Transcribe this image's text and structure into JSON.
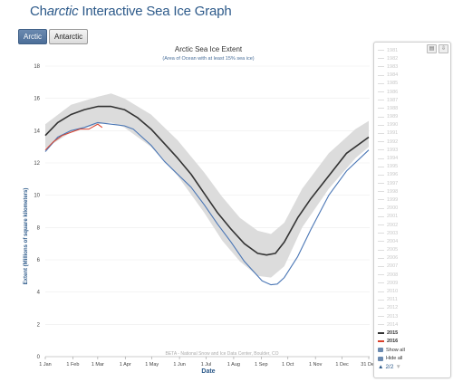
{
  "header": {
    "title_prefix": "Ch",
    "title_em": "arctic",
    "title_suffix": " Interactive Sea Ice Graph"
  },
  "tabs": [
    {
      "label": "Arctic",
      "active": true
    },
    {
      "label": "Antarctic",
      "active": false
    }
  ],
  "chart_data": {
    "type": "line",
    "title": "Arctic Sea Ice Extent",
    "subtitle": "(Area of Ocean with at least 15% sea ice)",
    "xlabel": "Date",
    "ylabel": "Extent (Millions of square kilometers)",
    "ylim": [
      0,
      18
    ],
    "yticks": [
      0,
      2,
      4,
      6,
      8,
      10,
      12,
      14,
      16,
      18
    ],
    "xlim": [
      1,
      366
    ],
    "xticks": [
      {
        "day": 1,
        "label": "1 Jan"
      },
      {
        "day": 32,
        "label": "1 Feb"
      },
      {
        "day": 60,
        "label": "1 Mar"
      },
      {
        "day": 91,
        "label": "1 Apr"
      },
      {
        "day": 121,
        "label": "1 May"
      },
      {
        "day": 152,
        "label": "1 Jun"
      },
      {
        "day": 182,
        "label": "1 Jul"
      },
      {
        "day": 213,
        "label": "1 Aug"
      },
      {
        "day": 244,
        "label": "1 Sep"
      },
      {
        "day": 274,
        "label": "1 Oct"
      },
      {
        "day": 305,
        "label": "1 Nov"
      },
      {
        "day": 335,
        "label": "1 Dec"
      },
      {
        "day": 365,
        "label": "31 Dec"
      }
    ],
    "credit": "BETA - National Snow and Ice Data Center, Boulder, CO",
    "band": {
      "x": [
        1,
        30,
        60,
        75,
        90,
        120,
        150,
        180,
        200,
        220,
        240,
        255,
        270,
        290,
        320,
        350,
        365
      ],
      "lower": [
        12.9,
        13.9,
        14.4,
        14.5,
        14.2,
        13.0,
        11.2,
        8.9,
        7.2,
        5.9,
        5.0,
        4.9,
        5.6,
        8.0,
        10.4,
        12.3,
        13.0
      ],
      "upper": [
        14.4,
        15.6,
        16.1,
        16.3,
        16.0,
        15.0,
        13.4,
        11.4,
        9.9,
        8.6,
        7.8,
        7.6,
        8.3,
        10.4,
        12.6,
        14.1,
        14.6
      ]
    },
    "series": [
      {
        "name": "",
        "color": "#333333",
        "x": [
          1,
          15,
          30,
          45,
          60,
          75,
          90,
          105,
          120,
          135,
          150,
          165,
          180,
          195,
          210,
          225,
          240,
          250,
          260,
          270,
          285,
          300,
          320,
          340,
          365
        ],
        "y": [
          13.7,
          14.5,
          15.0,
          15.3,
          15.5,
          15.5,
          15.3,
          14.8,
          14.1,
          13.2,
          12.3,
          11.3,
          10.1,
          8.9,
          7.9,
          7.0,
          6.4,
          6.3,
          6.4,
          7.1,
          8.6,
          9.8,
          11.2,
          12.6,
          13.6
        ]
      },
      {
        "name": "",
        "color": "#4a76b5",
        "x": [
          1,
          15,
          30,
          45,
          60,
          75,
          90,
          100,
          110,
          120,
          135,
          150,
          165,
          180,
          195,
          210,
          225,
          235,
          245,
          255,
          262,
          270,
          285,
          300,
          320,
          340,
          365
        ],
        "y": [
          12.7,
          13.6,
          14.0,
          14.2,
          14.5,
          14.4,
          14.3,
          14.1,
          13.6,
          13.1,
          12.1,
          11.3,
          10.5,
          9.4,
          8.2,
          7.1,
          5.9,
          5.3,
          4.7,
          4.45,
          4.5,
          4.9,
          6.2,
          7.9,
          10.0,
          11.5,
          12.8
        ]
      },
      {
        "name": "",
        "color": "#d9402b",
        "x": [
          1,
          10,
          20,
          30,
          40,
          50,
          60,
          65
        ],
        "y": [
          12.8,
          13.3,
          13.7,
          13.9,
          14.1,
          14.1,
          14.4,
          14.2
        ]
      }
    ]
  },
  "legend": {
    "years_off": [
      "1981",
      "1982",
      "1983",
      "1984",
      "1985",
      "1986",
      "1987",
      "1988",
      "1989",
      "1990",
      "1991",
      "1992",
      "1993",
      "1994",
      "1995",
      "1996",
      "1997",
      "1998",
      "1999",
      "2000",
      "2001",
      "2002",
      "2003",
      "2004",
      "2005",
      "2006",
      "2007",
      "2008",
      "2009",
      "2010",
      "2011",
      "2012",
      "2013",
      "2014"
    ],
    "years_on": [
      {
        "label": "2015",
        "color": "#333333"
      },
      {
        "label": "2016",
        "color": "#d9402b"
      }
    ],
    "show_all": "Show all",
    "hide_all": "Hide all",
    "page": "2/2"
  }
}
